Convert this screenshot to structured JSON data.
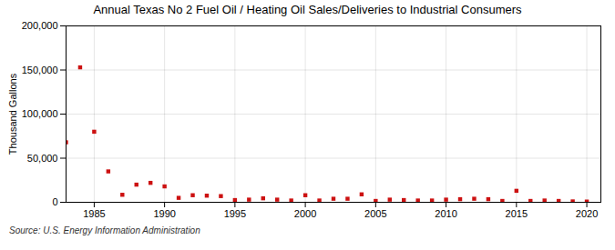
{
  "chart_data": {
    "type": "scatter",
    "title": "Annual Texas No 2 Fuel Oil / Heating Oil Sales/Deliveries to Industrial Consumers",
    "ylabel": "Thousand Gallons",
    "source": "Source: U.S. Energy Information Administration",
    "color": "#cc1111",
    "marker": "square",
    "grid": true,
    "xlim": [
      1983,
      2021
    ],
    "ylim": [
      0,
      200001
    ],
    "xticks": [
      1985,
      1990,
      1995,
      2000,
      2005,
      2010,
      2015,
      2020
    ],
    "yticks": [
      0,
      {
        "value": 50000,
        "label": "50,000"
      },
      {
        "value": 100000,
        "label": "100,000"
      },
      {
        "value": 150000,
        "label": "150,000"
      },
      {
        "value": 200000,
        "label": "200,000"
      }
    ],
    "x": [
      1983,
      1984,
      1985,
      1986,
      1987,
      1988,
      1989,
      1990,
      1991,
      1992,
      1993,
      1994,
      1995,
      1996,
      1997,
      1998,
      1999,
      2000,
      2001,
      2002,
      2003,
      2004,
      2005,
      2006,
      2007,
      2008,
      2009,
      2010,
      2011,
      2012,
      2013,
      2014,
      2015,
      2016,
      2017,
      2018,
      2019,
      2020
    ],
    "values": [
      68000,
      153000,
      80000,
      35000,
      8500,
      20000,
      22000,
      18000,
      5000,
      8000,
      7500,
      7000,
      2500,
      3000,
      4500,
      3000,
      2000,
      8000,
      2000,
      4000,
      4000,
      9000,
      1500,
      3000,
      2500,
      2000,
      2000,
      3000,
      3500,
      4000,
      3500,
      1500,
      13000,
      1500,
      2000,
      1500,
      1000,
      800
    ]
  }
}
